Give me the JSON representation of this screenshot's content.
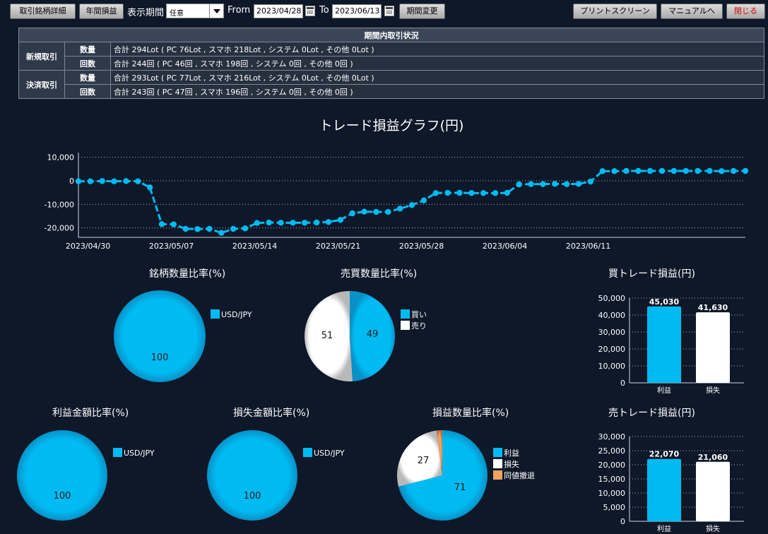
{
  "toolbar": {
    "detail_btn": "取引銘柄詳細",
    "annual_btn": "年間損益",
    "period_label": "表示期間",
    "period_value": "任意",
    "from_label": "From",
    "from_date": "2023/04/28",
    "to_label": "To",
    "to_date": "2023/06/13",
    "change_btn": "期間変更",
    "print_btn": "プリントスクリーン",
    "manual_btn": "マニュアルへ",
    "close_btn": "閉じる"
  },
  "summary": {
    "header": "期間内取引状況",
    "groups": [
      {
        "name": "新規取引",
        "rows": [
          {
            "label": "数量",
            "text": "合計 294Lot ( PC 76Lot , スマホ 218Lot , システム 0Lot , その他 0Lot )"
          },
          {
            "label": "回数",
            "text": "合計 244回 ( PC 46回 , スマホ 198回 , システム 0回 , その他 0回 )"
          }
        ]
      },
      {
        "name": "決済取引",
        "rows": [
          {
            "label": "数量",
            "text": "合計 293Lot ( PC 77Lot , スマホ 216Lot , システム 0Lot , その他 0Lot )"
          },
          {
            "label": "回数",
            "text": "合計 243回 ( PC 47回 , スマホ 196回 , システム 0回 , その他 0回 )"
          }
        ]
      }
    ]
  },
  "colors": {
    "accent": "#00bbf2",
    "white": "#ffffff",
    "orange": "#f0a060",
    "background": "#0f1829"
  },
  "chart_data": [
    {
      "id": "pl-line",
      "type": "line",
      "title": "トレード損益グラフ(円)",
      "ylim": [
        -24000,
        12000
      ],
      "yticks": [
        10000,
        0,
        -10000,
        -20000
      ],
      "ytick_labels": [
        "10,000",
        "0",
        "-10,000",
        "-20,000"
      ],
      "xticks": [
        "2023/04/30",
        "2023/05/07",
        "2023/05/14",
        "2023/05/21",
        "2023/05/28",
        "2023/06/04",
        "2023/06/11"
      ],
      "values": [
        -200,
        -200,
        -100,
        -200,
        -100,
        -200,
        -2800,
        -18400,
        -18500,
        -20400,
        -20500,
        -20400,
        -22100,
        -20400,
        -20200,
        -17900,
        -17700,
        -17800,
        -17800,
        -17800,
        -17700,
        -17500,
        -16600,
        -13800,
        -13100,
        -13200,
        -13200,
        -11800,
        -10300,
        -8300,
        -5200,
        -5100,
        -5100,
        -5200,
        -5200,
        -5200,
        -5100,
        -1500,
        -1400,
        -1400,
        -1300,
        -1400,
        -1300,
        -300,
        4100,
        4100,
        4200,
        4200,
        4200,
        4200,
        4200,
        4200,
        4200,
        4200,
        4100,
        4200,
        4200
      ]
    },
    {
      "id": "symbol-qty",
      "type": "pie",
      "title": "銘柄数量比率(%)",
      "slices": [
        {
          "label": "USD/JPY",
          "value": 100
        }
      ]
    },
    {
      "id": "side-qty",
      "type": "pie",
      "title": "売買数量比率(%)",
      "slices": [
        {
          "label": "買い",
          "value": 49
        },
        {
          "label": "売り",
          "value": 51
        }
      ]
    },
    {
      "id": "buy-pl",
      "type": "bar",
      "title": "買トレード損益(円)",
      "categories": [
        "利益",
        "損失"
      ],
      "values": [
        45030,
        41630
      ],
      "value_labels": [
        "45,030",
        "41,630"
      ],
      "ylim": [
        0,
        50000
      ],
      "yticks": [
        "0",
        "10,000",
        "20,000",
        "30,000",
        "40,000",
        "50,000"
      ]
    },
    {
      "id": "profit-amt",
      "type": "pie",
      "title": "利益金額比率(%)",
      "slices": [
        {
          "label": "USD/JPY",
          "value": 100
        }
      ]
    },
    {
      "id": "loss-amt",
      "type": "pie",
      "title": "損失金額比率(%)",
      "slices": [
        {
          "label": "USD/JPY",
          "value": 100
        }
      ]
    },
    {
      "id": "pl-count",
      "type": "pie",
      "title": "損益数量比率(%)",
      "slices": [
        {
          "label": "利益",
          "value": 71
        },
        {
          "label": "損失",
          "value": 27
        },
        {
          "label": "同値撤退",
          "value": 2
        }
      ]
    },
    {
      "id": "sell-pl",
      "type": "bar",
      "title": "売トレード損益(円)",
      "categories": [
        "利益",
        "損失"
      ],
      "values": [
        22070,
        21060
      ],
      "value_labels": [
        "22,070",
        "21,060"
      ],
      "ylim": [
        0,
        30000
      ],
      "yticks": [
        "0",
        "5,000",
        "10,000",
        "15,000",
        "20,000",
        "25,000",
        "30,000"
      ]
    }
  ]
}
